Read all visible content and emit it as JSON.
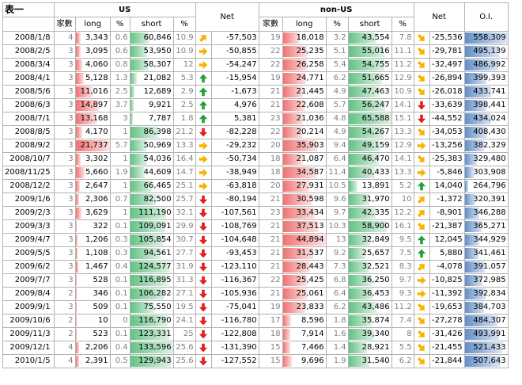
{
  "header": {
    "title": "表一",
    "us_group": "US",
    "nonus_group": "non-US",
    "net_label": "Net",
    "oi_label": "O.I.",
    "us_cols": [
      "家數",
      "long",
      "%",
      "short",
      "%",
      "Net"
    ],
    "nonus_cols": [
      "家數",
      "long",
      "%",
      "short",
      "%"
    ]
  },
  "colors": {
    "red_bar": "#f27272",
    "green_bar": "#63c384",
    "blue_bar": "#638ec6",
    "arrow_up": "#1fa337",
    "arrow_down": "#e02020",
    "arrow_side": "#f5b400"
  },
  "rows": [
    {
      "date": "2008/1/8",
      "us_n": "4",
      "us_long": "3,343",
      "us_lp": "0.6",
      "us_short": "60,846",
      "us_sp": "10.9",
      "us_dir": "upright",
      "us_net": "-57,503",
      "nu_n": "19",
      "nu_long": "18,018",
      "nu_lp": "3.2",
      "nu_short": "43,554",
      "nu_sp": "7.8",
      "nu_dir": "downright",
      "nu_net": "-25,536",
      "oi": "558,309"
    },
    {
      "date": "2008/2/5",
      "us_n": "3",
      "us_long": "3,095",
      "us_lp": "0.6",
      "us_short": "53,950",
      "us_sp": "10.9",
      "us_dir": "right",
      "us_net": "-50,855",
      "nu_n": "22",
      "nu_long": "25,235",
      "nu_lp": "5.1",
      "nu_short": "55,016",
      "nu_sp": "11.1",
      "nu_dir": "downright",
      "nu_net": "-29,781",
      "oi": "495,139"
    },
    {
      "date": "2008/3/4",
      "us_n": "3",
      "us_long": "4,060",
      "us_lp": "0.8",
      "us_short": "58,307",
      "us_sp": "12",
      "us_dir": "right",
      "us_net": "-54,247",
      "nu_n": "22",
      "nu_long": "26,258",
      "nu_lp": "5.4",
      "nu_short": "54,755",
      "nu_sp": "11.2",
      "nu_dir": "downright",
      "nu_net": "-32,497",
      "oi": "486,992"
    },
    {
      "date": "2008/4/1",
      "us_n": "3",
      "us_long": "5,128",
      "us_lp": "1.3",
      "us_short": "21,082",
      "us_sp": "5.3",
      "us_dir": "up",
      "us_net": "-15,954",
      "nu_n": "19",
      "nu_long": "24,771",
      "nu_lp": "6.2",
      "nu_short": "51,665",
      "nu_sp": "12.9",
      "nu_dir": "downright",
      "nu_net": "-26,894",
      "oi": "399,393"
    },
    {
      "date": "2008/5/6",
      "us_n": "3",
      "us_long": "11,016",
      "us_lp": "2.5",
      "us_short": "12,689",
      "us_sp": "2.9",
      "us_dir": "up",
      "us_net": "-1,673",
      "nu_n": "21",
      "nu_long": "21,445",
      "nu_lp": "4.9",
      "nu_short": "47,463",
      "nu_sp": "10.9",
      "nu_dir": "downright",
      "nu_net": "-26,018",
      "oi": "433,741"
    },
    {
      "date": "2008/6/3",
      "us_n": "3",
      "us_long": "14,897",
      "us_lp": "3.7",
      "us_short": "9,921",
      "us_sp": "2.5",
      "us_dir": "up",
      "us_net": "4,976",
      "nu_n": "21",
      "nu_long": "22,608",
      "nu_lp": "5.7",
      "nu_short": "56,247",
      "nu_sp": "14.1",
      "nu_dir": "down",
      "nu_net": "-33,639",
      "oi": "398,441"
    },
    {
      "date": "2008/7/1",
      "us_n": "3",
      "us_long": "13,168",
      "us_lp": "3",
      "us_short": "7,787",
      "us_sp": "1.8",
      "us_dir": "up",
      "us_net": "5,381",
      "nu_n": "23",
      "nu_long": "21,036",
      "nu_lp": "4.8",
      "nu_short": "65,588",
      "nu_sp": "15.1",
      "nu_dir": "down",
      "nu_net": "-44,552",
      "oi": "434,024"
    },
    {
      "date": "2008/8/5",
      "us_n": "3",
      "us_long": "4,170",
      "us_lp": "1",
      "us_short": "86,398",
      "us_sp": "21.2",
      "us_dir": "down",
      "us_net": "-82,228",
      "nu_n": "22",
      "nu_long": "20,214",
      "nu_lp": "4.9",
      "nu_short": "54,267",
      "nu_sp": "13.3",
      "nu_dir": "downright",
      "nu_net": "-34,053",
      "oi": "408,430"
    },
    {
      "date": "2008/9/2",
      "us_n": "3",
      "us_long": "21,737",
      "us_lp": "5.7",
      "us_short": "50,969",
      "us_sp": "13.3",
      "us_dir": "right",
      "us_net": "-29,232",
      "nu_n": "20",
      "nu_long": "35,903",
      "nu_lp": "9.4",
      "nu_short": "49,159",
      "nu_sp": "12.9",
      "nu_dir": "right",
      "nu_net": "-13,256",
      "oi": "382,329"
    },
    {
      "date": "2008/10/7",
      "us_n": "3",
      "us_long": "3,302",
      "us_lp": "1",
      "us_short": "54,036",
      "us_sp": "16.4",
      "us_dir": "right",
      "us_net": "-50,734",
      "nu_n": "18",
      "nu_long": "21,087",
      "nu_lp": "6.4",
      "nu_short": "46,470",
      "nu_sp": "14.1",
      "nu_dir": "downright",
      "nu_net": "-25,383",
      "oi": "329,480"
    },
    {
      "date": "2008/11/25",
      "us_n": "3",
      "us_long": "5,660",
      "us_lp": "1.9",
      "us_short": "44,609",
      "us_sp": "14.7",
      "us_dir": "right",
      "us_net": "-38,949",
      "nu_n": "18",
      "nu_long": "34,587",
      "nu_lp": "11.4",
      "nu_short": "40,433",
      "nu_sp": "13.3",
      "nu_dir": "right",
      "nu_net": "-5,846",
      "oi": "303,908"
    },
    {
      "date": "2008/12/2",
      "us_n": "3",
      "us_long": "2,647",
      "us_lp": "1",
      "us_short": "66,465",
      "us_sp": "25.1",
      "us_dir": "right",
      "us_net": "-63,818",
      "nu_n": "20",
      "nu_long": "27,931",
      "nu_lp": "10.5",
      "nu_short": "13,891",
      "nu_sp": "5.2",
      "nu_dir": "up",
      "nu_net": "14,040",
      "oi": "264,796"
    },
    {
      "date": "2009/1/6",
      "us_n": "3",
      "us_long": "2,306",
      "us_lp": "0.7",
      "us_short": "82,500",
      "us_sp": "25.7",
      "us_dir": "down",
      "us_net": "-80,194",
      "nu_n": "21",
      "nu_long": "30,598",
      "nu_lp": "9.6",
      "nu_short": "31,970",
      "nu_sp": "10",
      "nu_dir": "upright",
      "nu_net": "-1,372",
      "oi": "320,391"
    },
    {
      "date": "2009/2/3",
      "us_n": "3",
      "us_long": "3,629",
      "us_lp": "1",
      "us_short": "111,190",
      "us_sp": "32.1",
      "us_dir": "down",
      "us_net": "-107,561",
      "nu_n": "23",
      "nu_long": "33,434",
      "nu_lp": "9.7",
      "nu_short": "42,335",
      "nu_sp": "12.2",
      "nu_dir": "upright",
      "nu_net": "-8,901",
      "oi": "346,288"
    },
    {
      "date": "2009/3/3",
      "us_n": "3",
      "us_long": "322",
      "us_lp": "0.1",
      "us_short": "109,091",
      "us_sp": "29.9",
      "us_dir": "down",
      "us_net": "-108,769",
      "nu_n": "21",
      "nu_long": "37,513",
      "nu_lp": "10.3",
      "nu_short": "58,900",
      "nu_sp": "16.1",
      "nu_dir": "downright",
      "nu_net": "-21,387",
      "oi": "365,271"
    },
    {
      "date": "2009/4/7",
      "us_n": "3",
      "us_long": "1,206",
      "us_lp": "0.3",
      "us_short": "105,854",
      "us_sp": "30.7",
      "us_dir": "down",
      "us_net": "-104,648",
      "nu_n": "21",
      "nu_long": "44,894",
      "nu_lp": "13",
      "nu_short": "32,849",
      "nu_sp": "9.5",
      "nu_dir": "up",
      "nu_net": "12,045",
      "oi": "344,929"
    },
    {
      "date": "2009/5/5",
      "us_n": "3",
      "us_long": "1,108",
      "us_lp": "0.3",
      "us_short": "94,561",
      "us_sp": "27.7",
      "us_dir": "down",
      "us_net": "-93,453",
      "nu_n": "21",
      "nu_long": "31,537",
      "nu_lp": "9.2",
      "nu_short": "25,657",
      "nu_sp": "7.5",
      "nu_dir": "up",
      "nu_net": "5,880",
      "oi": "341,461"
    },
    {
      "date": "2009/6/2",
      "us_n": "3",
      "us_long": "1,467",
      "us_lp": "0.4",
      "us_short": "124,577",
      "us_sp": "31.9",
      "us_dir": "down",
      "us_net": "-123,110",
      "nu_n": "21",
      "nu_long": "28,443",
      "nu_lp": "7.3",
      "nu_short": "32,521",
      "nu_sp": "8.3",
      "nu_dir": "upright",
      "nu_net": "-4,078",
      "oi": "391,057"
    },
    {
      "date": "2009/7/7",
      "us_n": "3",
      "us_long": "528",
      "us_lp": "0.1",
      "us_short": "116,895",
      "us_sp": "31.3",
      "us_dir": "down",
      "us_net": "-116,367",
      "nu_n": "22",
      "nu_long": "25,425",
      "nu_lp": "6.8",
      "nu_short": "36,250",
      "nu_sp": "9.7",
      "nu_dir": "right",
      "nu_net": "-10,825",
      "oi": "372,985"
    },
    {
      "date": "2009/8/4",
      "us_n": "2",
      "us_long": "346",
      "us_lp": "0.1",
      "us_short": "106,282",
      "us_sp": "27.1",
      "us_dir": "down",
      "us_net": "-105,936",
      "nu_n": "21",
      "nu_long": "25,061",
      "nu_lp": "6.4",
      "nu_short": "36,453",
      "nu_sp": "9.3",
      "nu_dir": "right",
      "nu_net": "-11,392",
      "oi": "392,834"
    },
    {
      "date": "2009/9/1",
      "us_n": "3",
      "us_long": "509",
      "us_lp": "0.1",
      "us_short": "75,550",
      "us_sp": "19.5",
      "us_dir": "down",
      "us_net": "-75,041",
      "nu_n": "19",
      "nu_long": "23,833",
      "nu_lp": "6.2",
      "nu_short": "43,486",
      "nu_sp": "11.2",
      "nu_dir": "downright",
      "nu_net": "-19,653",
      "oi": "384,703"
    },
    {
      "date": "2009/10/6",
      "us_n": "2",
      "us_long": "10",
      "us_lp": "0",
      "us_short": "116,790",
      "us_sp": "24.1",
      "us_dir": "down",
      "us_net": "-116,780",
      "nu_n": "17",
      "nu_long": "8,596",
      "nu_lp": "1.8",
      "nu_short": "35,874",
      "nu_sp": "7.4",
      "nu_dir": "downright",
      "nu_net": "-27,278",
      "oi": "484,307"
    },
    {
      "date": "2009/11/3",
      "us_n": "2",
      "us_long": "523",
      "us_lp": "0.1",
      "us_short": "123,331",
      "us_sp": "25",
      "us_dir": "down",
      "us_net": "-122,808",
      "nu_n": "18",
      "nu_long": "7,914",
      "nu_lp": "1.6",
      "nu_short": "39,340",
      "nu_sp": "8",
      "nu_dir": "downright",
      "nu_net": "-31,426",
      "oi": "493,991"
    },
    {
      "date": "2009/12/1",
      "us_n": "4",
      "us_long": "2,206",
      "us_lp": "0.4",
      "us_short": "133,596",
      "us_sp": "25.6",
      "us_dir": "down",
      "us_net": "-131,390",
      "nu_n": "15",
      "nu_long": "7,466",
      "nu_lp": "1.4",
      "nu_short": "28,921",
      "nu_sp": "5.5",
      "nu_dir": "downright",
      "nu_net": "-21,455",
      "oi": "521,433"
    },
    {
      "date": "2010/1/5",
      "us_n": "4",
      "us_long": "2,391",
      "us_lp": "0.5",
      "us_short": "129,943",
      "us_sp": "25.6",
      "us_dir": "down",
      "us_net": "-127,552",
      "nu_n": "15",
      "nu_long": "9,696",
      "nu_lp": "1.9",
      "nu_short": "31,540",
      "nu_sp": "6.2",
      "nu_dir": "downright",
      "nu_net": "-21,844",
      "oi": "507,643"
    }
  ]
}
